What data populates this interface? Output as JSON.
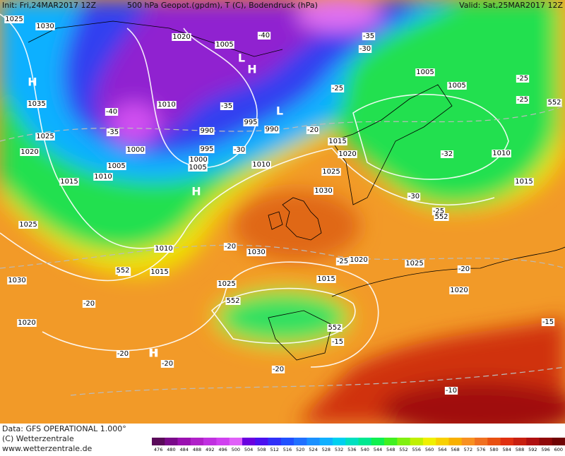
{
  "header": {
    "init": "Init: Fri,24MAR2017 12Z",
    "title": "500 hPa Geopot.(gpdm), T (C), Bodendruck (hPa)",
    "valid": "Valid: Sat,25MAR2017 12Z"
  },
  "footer": {
    "data": "Data: GFS OPERATIONAL 1.000°",
    "copyright": "(C) Wetterzentrale",
    "url": "www.wetterzentrale.de"
  },
  "colorbar": {
    "values": [
      476,
      480,
      484,
      488,
      492,
      496,
      500,
      504,
      508,
      512,
      516,
      520,
      524,
      528,
      532,
      536,
      540,
      544,
      548,
      552,
      556,
      560,
      564,
      568,
      572,
      576,
      580,
      584,
      588,
      592,
      596,
      600
    ],
    "colors": [
      "#5a0a5a",
      "#7a0a8a",
      "#9a10b0",
      "#b020c8",
      "#c030e0",
      "#d040f0",
      "#e060f8",
      "#6a00e0",
      "#4a10f0",
      "#3030f8",
      "#2050ff",
      "#2070ff",
      "#1a90ff",
      "#10b0ff",
      "#00d0f0",
      "#00e0c0",
      "#00e890",
      "#10f050",
      "#40f020",
      "#80f010",
      "#c0f000",
      "#f0f000",
      "#f8d000",
      "#f8b000",
      "#f89020",
      "#f07020",
      "#e85010",
      "#e03010",
      "#c82010",
      "#b01010",
      "#900808",
      "#700404"
    ]
  },
  "labels": [
    "1025",
    "1030",
    "1035",
    "1025",
    "1020",
    "1015",
    "1010",
    "1005",
    "1000",
    "990",
    "995",
    "1010",
    "1005",
    "1000",
    "990",
    "995",
    "1005",
    "1010",
    "1015",
    "1020",
    "1025",
    "1030",
    "1025",
    "1030",
    "1020",
    "1025",
    "1015",
    "1010",
    "1015",
    "1030",
    "1025",
    "1020",
    "1020",
    "1005",
    "1005",
    "1010",
    "1015",
    "1020",
    "-40",
    "-35",
    "-40",
    "-35",
    "-30",
    "-35",
    "-30",
    "-25",
    "-20",
    "-25",
    "-30",
    "-32",
    "-25",
    "-25",
    "-20",
    "-25",
    "-20",
    "-20",
    "-20",
    "-25",
    "-20",
    "-15",
    "-20",
    "-10",
    "-15",
    "552",
    "552",
    "552",
    "552",
    "552",
    "H",
    "H",
    "H",
    "H",
    "L",
    "L",
    "H"
  ]
}
